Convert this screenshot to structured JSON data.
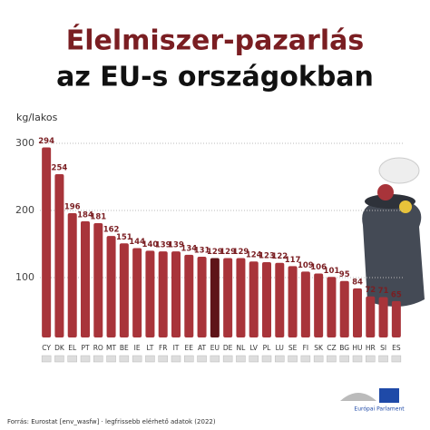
{
  "chart_data": {
    "type": "bar",
    "title": "Élelmiszer-pazarlás",
    "subtitle": "az EU-s országokban",
    "y_label": "kg/lakos",
    "categories": [
      "CY",
      "DK",
      "EL",
      "PT",
      "RO",
      "MT",
      "BE",
      "IE",
      "LT",
      "FR",
      "IT",
      "EE",
      "AT",
      "EU",
      "DE",
      "NL",
      "LV",
      "PL",
      "LU",
      "SE",
      "FI",
      "SK",
      "CZ",
      "BG",
      "HU",
      "HR",
      "SI",
      "ES"
    ],
    "values": [
      294,
      254,
      196,
      184,
      181,
      162,
      151,
      144,
      140,
      139,
      139,
      134,
      131,
      129,
      129,
      129,
      124,
      123,
      122,
      117,
      109,
      106,
      101,
      95,
      84,
      72,
      71,
      65
    ],
    "colors": [
      "#a8343a",
      "#a8343a",
      "#a8343a",
      "#a8343a",
      "#a8343a",
      "#a8343a",
      "#a8343a",
      "#a8343a",
      "#a8343a",
      "#a8343a",
      "#a8343a",
      "#a8343a",
      "#a8343a",
      "#5e1418",
      "#a8343a",
      "#a8343a",
      "#a8343a",
      "#a8343a",
      "#a8343a",
      "#a8343a",
      "#a8343a",
      "#a8343a",
      "#a8343a",
      "#a8343a",
      "#a8343a",
      "#a8343a",
      "#a8343a",
      "#a8343a"
    ],
    "ylim": [
      0,
      300
    ],
    "yticks": [
      100,
      200,
      300
    ],
    "grid": true,
    "source": "Forrás: Eurostat [env_wasfw] · legfrissebb elérhető adatok (2022)",
    "logo_text": "Európai Parlament"
  }
}
